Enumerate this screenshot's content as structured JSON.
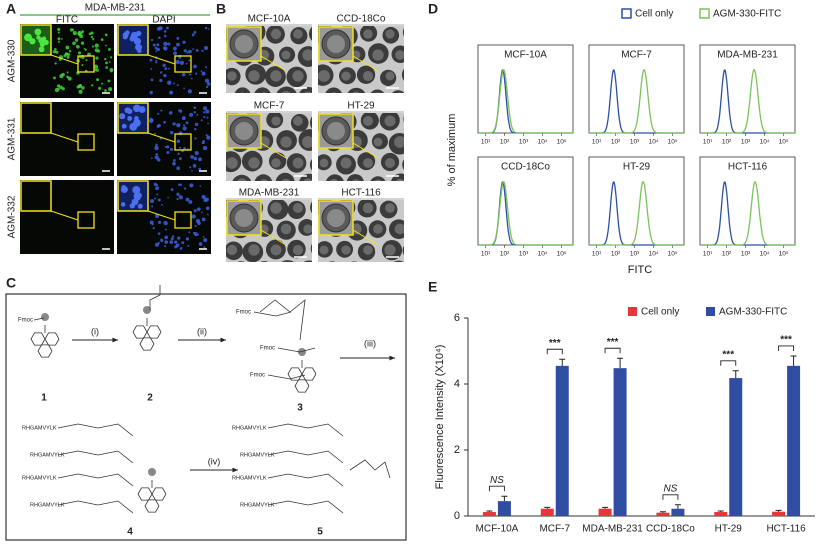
{
  "panels": {
    "a": {
      "label": "A",
      "title": "MDA-MB-231",
      "columns": [
        "FITC",
        "DAPI"
      ],
      "rows": [
        "AGM-330",
        "AGM-331",
        "AGM-332"
      ]
    },
    "b": {
      "label": "B",
      "cells": [
        "MCF-10A",
        "CCD-18Co",
        "MCF-7",
        "HT-29",
        "MDA-MB-231",
        "HCT-116"
      ]
    },
    "c": {
      "label": "C",
      "steps": [
        "(i)",
        "(ii)",
        "(iii)",
        "(iv)"
      ],
      "compounds": [
        "1",
        "2",
        "3",
        "4",
        "5"
      ],
      "groups": [
        "Fmoc",
        "RHGAMVYLK"
      ]
    },
    "d": {
      "label": "D"
    },
    "e": {
      "label": "E"
    }
  },
  "chart_data": [
    {
      "type": "density",
      "ylabel": "% of maximum",
      "xlabel": "FITC",
      "series": [
        {
          "name": "Cell only",
          "color": "#2e4fa0"
        },
        {
          "name": "AGM-330-FITC",
          "color": "#7cc35a"
        }
      ],
      "xlim": [
        0.6,
        5.6
      ],
      "xticks": [
        {
          "value": 1,
          "label": "10¹"
        },
        {
          "value": 2,
          "label": "10²"
        },
        {
          "value": 3,
          "label": "10³"
        },
        {
          "value": 4,
          "label": "10⁴"
        },
        {
          "value": 5,
          "label": "10⁵"
        }
      ],
      "subplots": [
        {
          "title": "MCF-10A",
          "peaks": [
            1.9,
            1.95
          ]
        },
        {
          "title": "MCF-7",
          "peaks": [
            1.9,
            3.5
          ]
        },
        {
          "title": "MDA-MB-231",
          "peaks": [
            1.9,
            3.45
          ]
        },
        {
          "title": "CCD-18Co",
          "peaks": [
            1.9,
            1.95
          ]
        },
        {
          "title": "HT-29",
          "peaks": [
            1.9,
            3.45
          ]
        },
        {
          "title": "HCT-116",
          "peaks": [
            1.9,
            3.5
          ]
        }
      ]
    },
    {
      "type": "bar",
      "ylabel": "Fluorescence Intensity (X10⁴)",
      "categories": [
        "MCF-10A",
        "MCF-7",
        "MDA-MB-231",
        "CCD-18Co",
        "HT-29",
        "HCT-116"
      ],
      "series": [
        {
          "name": "Cell only",
          "color": "#e8353a",
          "values": [
            0.12,
            0.22,
            0.22,
            0.1,
            0.12,
            0.13
          ],
          "errors": [
            0.03,
            0.04,
            0.04,
            0.03,
            0.03,
            0.04
          ]
        },
        {
          "name": "AGM-330-FITC",
          "color": "#2f4ea3",
          "values": [
            0.45,
            4.55,
            4.48,
            0.22,
            4.18,
            4.55
          ],
          "errors": [
            0.15,
            0.2,
            0.3,
            0.12,
            0.22,
            0.3
          ]
        }
      ],
      "significance": [
        "NS",
        "***",
        "***",
        "NS",
        "***",
        "***"
      ],
      "ylim": [
        0,
        6
      ],
      "yticks": [
        0,
        2,
        4,
        6
      ]
    }
  ]
}
